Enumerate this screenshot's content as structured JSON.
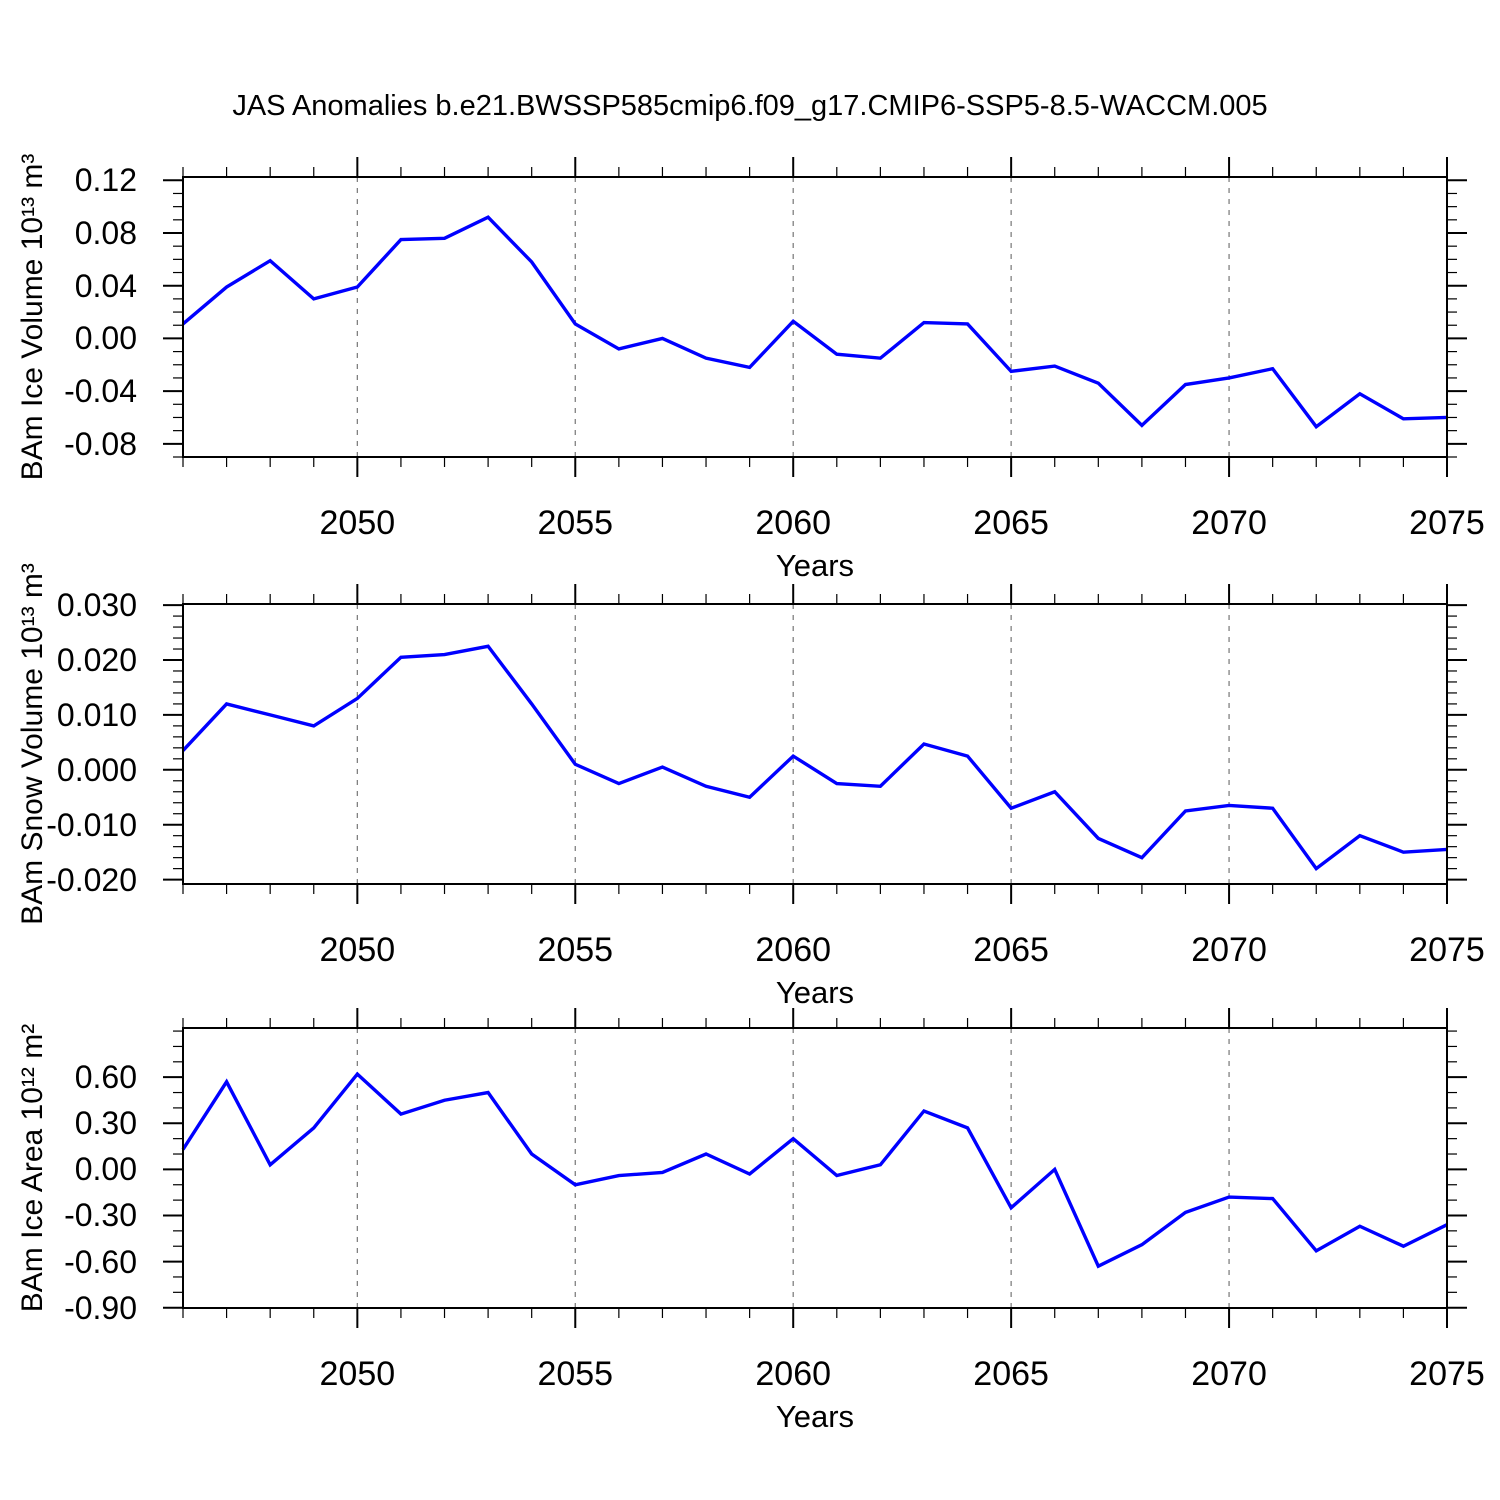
{
  "title": "JAS Anomalies b.e21.BWSSP585cmip6.f09_g17.CMIP6-SSP5-8.5-WACCM.005",
  "colors": {
    "line": "#0000ff",
    "grid": "#808080",
    "axis": "#000000"
  },
  "chart_data": [
    {
      "type": "line",
      "title": "",
      "ylabel": "BAm Ice Volume 10¹³ m³",
      "xlabel": "Years",
      "color": "#0000ff",
      "x": [
        2046,
        2047,
        2048,
        2049,
        2050,
        2051,
        2052,
        2053,
        2054,
        2055,
        2056,
        2057,
        2058,
        2059,
        2060,
        2061,
        2062,
        2063,
        2064,
        2065,
        2066,
        2067,
        2068,
        2069,
        2070,
        2071,
        2072,
        2073,
        2074,
        2075
      ],
      "values": [
        0.011,
        0.039,
        0.059,
        0.03,
        0.039,
        0.075,
        0.076,
        0.092,
        0.058,
        0.011,
        -0.008,
        0.0,
        -0.015,
        -0.022,
        0.013,
        -0.012,
        -0.015,
        0.012,
        0.011,
        -0.025,
        -0.021,
        -0.034,
        -0.066,
        -0.035,
        -0.03,
        -0.023,
        -0.067,
        -0.042,
        -0.061,
        -0.06
      ],
      "ylim": [
        -0.09,
        0.1225
      ],
      "yticks": [
        0.12,
        0.08,
        0.04,
        0.0,
        -0.04,
        -0.08
      ],
      "ytick_labels": [
        "0.12",
        "0.08",
        "0.04",
        "0.00",
        "-0.04",
        "-0.08"
      ],
      "y_minor_step": 0.01,
      "x_major_ticks": [
        2050,
        2055,
        2060,
        2065,
        2070,
        2075
      ],
      "x_minor_step": 1,
      "x_gridlines": [
        2050,
        2055,
        2060,
        2065,
        2070
      ],
      "grid": "vertical-dashed",
      "legend": "none"
    },
    {
      "type": "line",
      "title": "",
      "ylabel": "BAm Snow Volume 10¹³ m³",
      "xlabel": "Years",
      "color": "#0000ff",
      "x": [
        2046,
        2047,
        2048,
        2049,
        2050,
        2051,
        2052,
        2053,
        2054,
        2055,
        2056,
        2057,
        2058,
        2059,
        2060,
        2061,
        2062,
        2063,
        2064,
        2065,
        2066,
        2067,
        2068,
        2069,
        2070,
        2071,
        2072,
        2073,
        2074,
        2075
      ],
      "values": [
        0.0035,
        0.012,
        0.01,
        0.008,
        0.013,
        0.0205,
        0.021,
        0.0225,
        0.012,
        0.001,
        -0.0025,
        0.0005,
        -0.003,
        -0.005,
        0.0025,
        -0.0025,
        -0.003,
        0.0047,
        0.0025,
        -0.007,
        -0.004,
        -0.0125,
        -0.016,
        -0.0075,
        -0.0065,
        -0.007,
        -0.018,
        -0.012,
        -0.015,
        -0.0145
      ],
      "ylim": [
        -0.0208,
        0.0302
      ],
      "yticks": [
        0.03,
        0.02,
        0.01,
        0.0,
        -0.01,
        -0.02
      ],
      "ytick_labels": [
        "0.030",
        "0.020",
        "0.010",
        "0.000",
        "-0.010",
        "-0.020"
      ],
      "y_minor_step": 0.002,
      "x_major_ticks": [
        2050,
        2055,
        2060,
        2065,
        2070,
        2075
      ],
      "x_minor_step": 1,
      "x_gridlines": [
        2050,
        2055,
        2060,
        2065,
        2070
      ],
      "grid": "vertical-dashed",
      "legend": "none"
    },
    {
      "type": "line",
      "title": "",
      "ylabel": "BAm Ice Area 10¹² m²",
      "xlabel": "Years",
      "color": "#0000ff",
      "x": [
        2046,
        2047,
        2048,
        2049,
        2050,
        2051,
        2052,
        2053,
        2054,
        2055,
        2056,
        2057,
        2058,
        2059,
        2060,
        2061,
        2062,
        2063,
        2064,
        2065,
        2066,
        2067,
        2068,
        2069,
        2070,
        2071,
        2072,
        2073,
        2074,
        2075
      ],
      "values": [
        0.13,
        0.57,
        0.03,
        0.27,
        0.62,
        0.36,
        0.45,
        0.5,
        0.1,
        -0.1,
        -0.04,
        -0.02,
        0.1,
        -0.03,
        0.2,
        -0.04,
        0.03,
        0.38,
        0.27,
        -0.25,
        0.0,
        -0.63,
        -0.49,
        -0.28,
        -0.18,
        -0.19,
        -0.53,
        -0.37,
        -0.5,
        -0.36
      ],
      "ylim": [
        -0.902,
        0.92
      ],
      "yticks": [
        0.6,
        0.3,
        0.0,
        -0.3,
        -0.6,
        -0.9
      ],
      "ytick_labels": [
        "0.60",
        "0.30",
        "0.00",
        "-0.30",
        "-0.60",
        "-0.90"
      ],
      "y_minor_step": 0.1,
      "x_major_ticks": [
        2050,
        2055,
        2060,
        2065,
        2070,
        2075
      ],
      "x_minor_step": 1,
      "x_gridlines": [
        2050,
        2055,
        2060,
        2065,
        2070
      ],
      "grid": "vertical-dashed",
      "legend": "none"
    }
  ]
}
